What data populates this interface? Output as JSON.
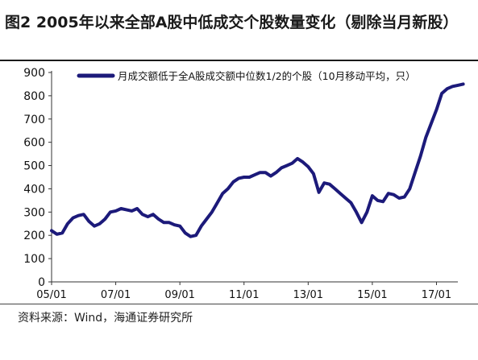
{
  "figure": {
    "title": "图2  2005年以来全部A股中低成交个股数量变化（剔除当月新股）",
    "source": "资料来源：Wind，海通证券研究所"
  },
  "chart_data": {
    "type": "line",
    "title": "图2  2005年以来全部A股中低成交个股数量变化（剔除当月新股）",
    "xlabel": "",
    "ylabel": "",
    "ylim": [
      0,
      900
    ],
    "yticks": [
      0,
      100,
      200,
      300,
      400,
      500,
      600,
      700,
      800,
      900
    ],
    "xticks": [
      "05/01",
      "07/01",
      "09/01",
      "11/01",
      "13/01",
      "15/01",
      "17/01"
    ],
    "grid": false,
    "legend_position": "top",
    "series": [
      {
        "name": "月成交额低于全A股成交额中位数1/2的个股（10月移动平均，只）",
        "color": "#1c1a7a",
        "x": [
          "05/01",
          "05/03",
          "05/05",
          "05/07",
          "05/09",
          "05/11",
          "06/01",
          "06/03",
          "06/05",
          "06/07",
          "06/09",
          "06/11",
          "07/01",
          "07/03",
          "07/05",
          "07/07",
          "07/09",
          "07/11",
          "08/01",
          "08/03",
          "08/05",
          "08/07",
          "08/09",
          "08/11",
          "09/01",
          "09/03",
          "09/05",
          "09/07",
          "09/09",
          "09/11",
          "10/01",
          "10/03",
          "10/05",
          "10/07",
          "10/09",
          "10/11",
          "11/01",
          "11/03",
          "11/05",
          "11/07",
          "11/09",
          "11/11",
          "12/01",
          "12/03",
          "12/05",
          "12/07",
          "12/09",
          "12/11",
          "13/01",
          "13/03",
          "13/05",
          "13/07",
          "13/09",
          "13/11",
          "14/01",
          "14/03",
          "14/05",
          "14/07",
          "14/09",
          "14/11",
          "15/01",
          "15/03",
          "15/05",
          "15/07",
          "15/09",
          "15/11",
          "16/01",
          "16/03",
          "16/05",
          "16/07",
          "16/09",
          "16/11",
          "17/01",
          "17/03",
          "17/05",
          "17/07",
          "17/09",
          "17/11"
        ],
        "values": [
          220,
          205,
          210,
          250,
          275,
          285,
          290,
          260,
          240,
          250,
          270,
          300,
          305,
          315,
          310,
          305,
          315,
          290,
          280,
          290,
          270,
          255,
          255,
          245,
          240,
          210,
          195,
          200,
          240,
          270,
          300,
          340,
          380,
          400,
          430,
          445,
          450,
          450,
          460,
          470,
          470,
          455,
          470,
          490,
          500,
          510,
          530,
          515,
          495,
          465,
          385,
          425,
          420,
          400,
          380,
          360,
          340,
          300,
          255,
          300,
          370,
          350,
          345,
          380,
          375,
          360,
          365,
          400,
          470,
          540,
          620,
          680,
          740,
          810,
          830,
          840,
          845,
          850
        ]
      }
    ]
  }
}
